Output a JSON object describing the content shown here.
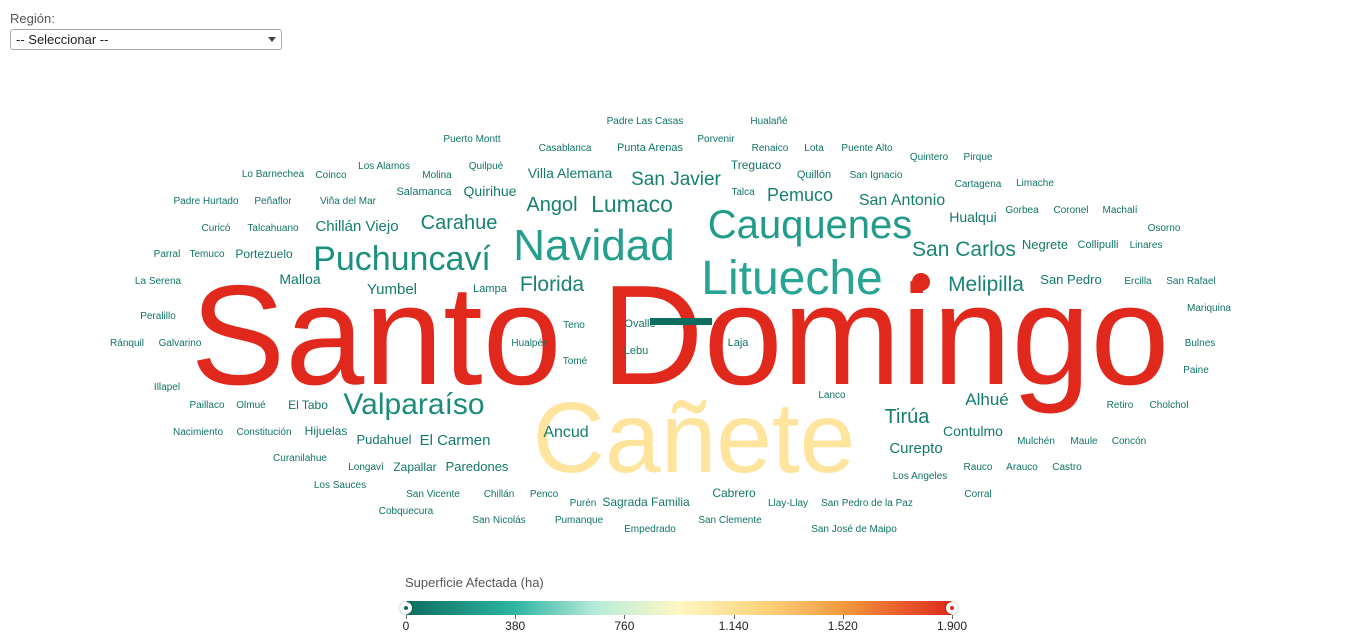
{
  "filter": {
    "label": "Región:",
    "selected": "-- Seleccionar --"
  },
  "legend": {
    "title": "Superficie Afectada (ha)",
    "ticks": [
      "0",
      "380",
      "760",
      "1.140",
      "1.520",
      "1.900"
    ],
    "min": 0,
    "max": 1900
  },
  "chart_data": {
    "type": "wordcloud",
    "color_scale": [
      "#0d6e5f",
      "#2fb5a4",
      "#fff7c4",
      "#fdd27a",
      "#e0291c"
    ],
    "words": [
      {
        "text": "Santo Domingo",
        "value": 1900
      },
      {
        "text": "Cañete",
        "value": 1200
      },
      {
        "text": "Navidad",
        "value": 320
      },
      {
        "text": "Litueche",
        "value": 360
      },
      {
        "text": "Cauquenes",
        "value": 300
      },
      {
        "text": "Puchuncaví",
        "value": 220
      },
      {
        "text": "Valparaíso",
        "value": 200
      },
      {
        "text": "San Carlos",
        "value": 160
      },
      {
        "text": "Melipilla",
        "value": 150
      },
      {
        "text": "Lumaco",
        "value": 150
      },
      {
        "text": "Florida",
        "value": 140
      },
      {
        "text": "Angol",
        "value": 130
      },
      {
        "text": "Carahue",
        "value": 130
      },
      {
        "text": "San Javier",
        "value": 120
      },
      {
        "text": "Pemuco",
        "value": 110
      },
      {
        "text": "San Antonio",
        "value": 100
      },
      {
        "text": "Chillán Viejo",
        "value": 95
      },
      {
        "text": "Tirúa",
        "value": 110
      },
      {
        "text": "Alhué",
        "value": 100
      },
      {
        "text": "Ancud",
        "value": 90
      },
      {
        "text": "El Carmen",
        "value": 85
      },
      {
        "text": "Yumbel",
        "value": 85
      },
      {
        "text": "Villa Alemana",
        "value": 80
      },
      {
        "text": "Curepto",
        "value": 80
      },
      {
        "text": "Contulmo",
        "value": 75
      },
      {
        "text": "Hualqui",
        "value": 75
      },
      {
        "text": "Negrete",
        "value": 70
      },
      {
        "text": "San Pedro",
        "value": 70
      },
      {
        "text": "Quirihue",
        "value": 70
      },
      {
        "text": "Malloa",
        "value": 70
      },
      {
        "text": "Paredones",
        "value": 65
      },
      {
        "text": "Pudahuel",
        "value": 60
      },
      {
        "text": "Zapallar",
        "value": 60
      },
      {
        "text": "Hijuelas",
        "value": 60
      },
      {
        "text": "El Tabo",
        "value": 60
      },
      {
        "text": "Cabrero",
        "value": 60
      },
      {
        "text": "Sagrada Familia",
        "value": 60
      },
      {
        "text": "Portezuelo",
        "value": 60
      },
      {
        "text": "Quillón",
        "value": 55
      },
      {
        "text": "Treguaco",
        "value": 55
      },
      {
        "text": "Collipulli",
        "value": 55
      },
      {
        "text": "Lampa",
        "value": 50
      },
      {
        "text": "Teno",
        "value": 45
      },
      {
        "text": "Lebu",
        "value": 45
      },
      {
        "text": "Laja",
        "value": 50
      },
      {
        "text": "Tomé",
        "value": 45
      },
      {
        "text": "Hualpén",
        "value": 45
      },
      {
        "text": "Ovalle",
        "value": 50
      },
      {
        "text": "Lanco",
        "value": 40
      },
      {
        "text": "Padre Las Casas",
        "value": 40
      },
      {
        "text": "Hualañé",
        "value": 40
      },
      {
        "text": "Puerto Montt",
        "value": 40
      },
      {
        "text": "Casablanca",
        "value": 40
      },
      {
        "text": "Punta Arenas",
        "value": 45
      },
      {
        "text": "Porvenir",
        "value": 40
      },
      {
        "text": "Renaico",
        "value": 40
      },
      {
        "text": "Lota",
        "value": 40
      },
      {
        "text": "Puente Alto",
        "value": 40
      },
      {
        "text": "Quintero",
        "value": 40
      },
      {
        "text": "Pirque",
        "value": 40
      },
      {
        "text": "Lo Barnechea",
        "value": 40
      },
      {
        "text": "Coinco",
        "value": 40
      },
      {
        "text": "Los Alamos",
        "value": 40
      },
      {
        "text": "Molina",
        "value": 40
      },
      {
        "text": "Quilpué",
        "value": 40
      },
      {
        "text": "San Ignacio",
        "value": 40
      },
      {
        "text": "Cartagena",
        "value": 40
      },
      {
        "text": "Limache",
        "value": 40
      },
      {
        "text": "Padre Hurtado",
        "value": 40
      },
      {
        "text": "Peñaflor",
        "value": 40
      },
      {
        "text": "Viña del Mar",
        "value": 40
      },
      {
        "text": "Salamanca",
        "value": 45
      },
      {
        "text": "Talca",
        "value": 40
      },
      {
        "text": "Gorbea",
        "value": 40
      },
      {
        "text": "Coronel",
        "value": 40
      },
      {
        "text": "Machalí",
        "value": 40
      },
      {
        "text": "Curicó",
        "value": 40
      },
      {
        "text": "Talcahuano",
        "value": 40
      },
      {
        "text": "Osorno",
        "value": 40
      },
      {
        "text": "Parral",
        "value": 40
      },
      {
        "text": "Temuco",
        "value": 40
      },
      {
        "text": "Linares",
        "value": 40
      },
      {
        "text": "La Serena",
        "value": 40
      },
      {
        "text": "Ercilla",
        "value": 40
      },
      {
        "text": "San Rafael",
        "value": 40
      },
      {
        "text": "Mariquina",
        "value": 40
      },
      {
        "text": "Peralillo",
        "value": 40
      },
      {
        "text": "Ránquil",
        "value": 40
      },
      {
        "text": "Galvarino",
        "value": 40
      },
      {
        "text": "Bulnes",
        "value": 40
      },
      {
        "text": "Paine",
        "value": 40
      },
      {
        "text": "Illapel",
        "value": 40
      },
      {
        "text": "Retiro",
        "value": 40
      },
      {
        "text": "Cholchol",
        "value": 40
      },
      {
        "text": "Paillaco",
        "value": 40
      },
      {
        "text": "Olmué",
        "value": 40
      },
      {
        "text": "Nacimiento",
        "value": 40
      },
      {
        "text": "Constitución",
        "value": 40
      },
      {
        "text": "Mulchén",
        "value": 40
      },
      {
        "text": "Maule",
        "value": 40
      },
      {
        "text": "Concón",
        "value": 40
      },
      {
        "text": "Curanilahue",
        "value": 40
      },
      {
        "text": "Longaví",
        "value": 40
      },
      {
        "text": "Los Angeles",
        "value": 40
      },
      {
        "text": "Rauco",
        "value": 40
      },
      {
        "text": "Arauco",
        "value": 40
      },
      {
        "text": "Castro",
        "value": 40
      },
      {
        "text": "Los Sauces",
        "value": 40
      },
      {
        "text": "San Vicente",
        "value": 40
      },
      {
        "text": "Chillán",
        "value": 40
      },
      {
        "text": "Penco",
        "value": 40
      },
      {
        "text": "Purén",
        "value": 40
      },
      {
        "text": "Llay-Llay",
        "value": 40
      },
      {
        "text": "San Pedro de la Paz",
        "value": 40
      },
      {
        "text": "Corral",
        "value": 40
      },
      {
        "text": "Cobquecura",
        "value": 40
      },
      {
        "text": "San Nicolás",
        "value": 40
      },
      {
        "text": "Pumanque",
        "value": 40
      },
      {
        "text": "Empedrado",
        "value": 40
      },
      {
        "text": "San Clemente",
        "value": 40
      },
      {
        "text": "San José de Maipo",
        "value": 40
      }
    ]
  }
}
